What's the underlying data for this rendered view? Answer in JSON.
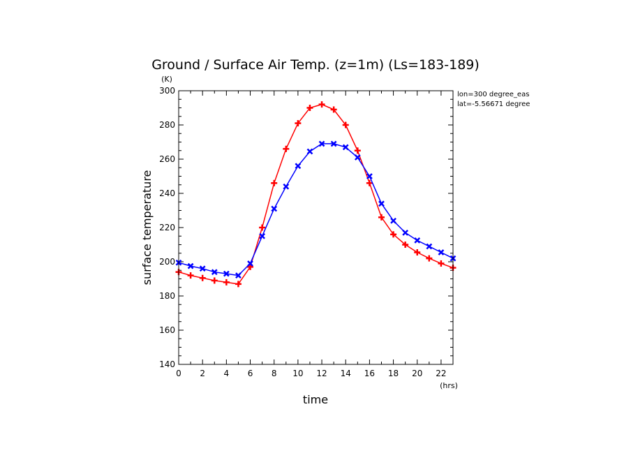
{
  "chart_data": {
    "type": "line",
    "title": "Ground / Surface Air Temp. (z=1m) (Ls=183-189)",
    "xlabel": "time",
    "ylabel": "surface temperature",
    "xunit": "(hrs)",
    "yunit": "(K)",
    "annotations": [
      "lon=300 degree_eas",
      "lat=-5.56671 degree"
    ],
    "xlim": [
      0,
      23
    ],
    "ylim": [
      140,
      300
    ],
    "xticks": [
      0,
      2,
      4,
      6,
      8,
      10,
      12,
      14,
      16,
      18,
      20,
      22
    ],
    "yticks": [
      140,
      160,
      180,
      200,
      220,
      240,
      260,
      280,
      300
    ],
    "grid": false,
    "x": [
      0,
      1,
      2,
      3,
      4,
      5,
      6,
      7,
      8,
      9,
      10,
      11,
      12,
      13,
      14,
      15,
      16,
      17,
      18,
      19,
      20,
      21,
      22,
      23
    ],
    "series": [
      {
        "color": "#ff0000",
        "marker": "plus",
        "values": [
          194,
          192,
          190.5,
          189,
          188,
          187,
          197,
          220,
          246,
          266,
          281,
          290,
          292,
          289,
          280,
          265,
          246,
          226,
          216,
          210,
          205.5,
          202,
          199,
          196.5
        ]
      },
      {
        "color": "#0000ff",
        "marker": "x",
        "values": [
          199.5,
          197.5,
          196,
          194,
          193,
          192,
          199,
          215,
          231,
          244,
          256,
          264.5,
          269,
          269,
          267,
          261,
          250,
          234,
          224,
          217,
          212.5,
          209,
          205.5,
          202
        ]
      }
    ]
  }
}
